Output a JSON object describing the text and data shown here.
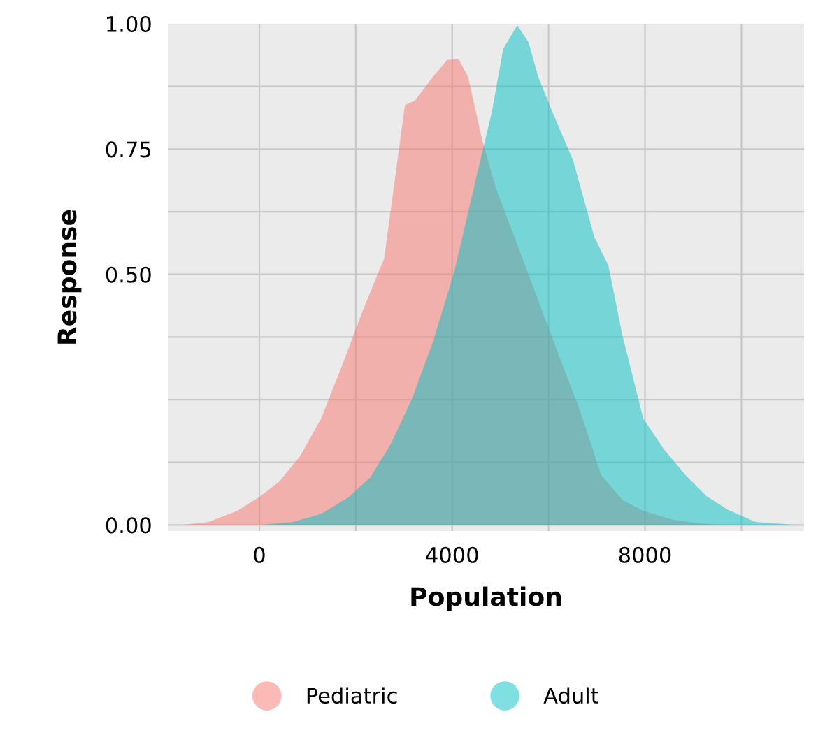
{
  "chart_data": {
    "type": "area",
    "xlabel": "Population",
    "ylabel": "Response",
    "x": [
      -1630,
      -1050,
      -465,
      0,
      407,
      843,
      1280,
      1715,
      2150,
      2590,
      3020,
      3230,
      3600,
      3900,
      4130,
      4330,
      4620,
      4910,
      5350,
      5785,
      6220,
      6660,
      7090,
      7530,
      7965,
      8550,
      9130,
      9710
    ],
    "series": [
      {
        "name": "Pediatric",
        "color": "#F8766D",
        "values": [
          0,
          0.006,
          0.028,
          0.056,
          0.086,
          0.137,
          0.212,
          0.318,
          0.429,
          0.532,
          0.838,
          0.847,
          0.894,
          0.928,
          0.93,
          0.894,
          0.769,
          0.671,
          0.56,
          0.448,
          0.337,
          0.226,
          0.1,
          0.05,
          0.028,
          0.011,
          0.003,
          0
        ]
      },
      {
        "name": "Adult",
        "color": "#00BFC4",
        "x": [
          0,
          700,
          1280,
          1860,
          2300,
          2730,
          3170,
          3600,
          4040,
          4480,
          4825,
          5060,
          5350,
          5580,
          5785,
          6075,
          6510,
          6950,
          7240,
          7530,
          7965,
          8400,
          8840,
          9270,
          9710,
          10290,
          11160
        ],
        "values": [
          0,
          0.006,
          0.022,
          0.056,
          0.095,
          0.162,
          0.253,
          0.365,
          0.504,
          0.685,
          0.825,
          0.95,
          0.997,
          0.964,
          0.894,
          0.825,
          0.727,
          0.574,
          0.518,
          0.379,
          0.212,
          0.15,
          0.1,
          0.058,
          0.031,
          0.006,
          0
        ]
      }
    ],
    "xlim": [
      -1900,
      11300
    ],
    "ylim": [
      -0.012,
      1.0
    ],
    "xticks": [
      0,
      {
        "value": 2000,
        "label": null
      },
      4000,
      {
        "value": 6000,
        "label": null
      },
      8000,
      {
        "value": 10000,
        "label": null
      }
    ],
    "yticks": [
      {
        "value": 0,
        "label": "0.00"
      },
      {
        "value": 0.125,
        "label": null
      },
      {
        "value": 0.25,
        "label": null
      },
      {
        "value": 0.375,
        "label": null
      },
      {
        "value": 0.5,
        "label": "0.50"
      },
      {
        "value": 0.625,
        "label": null
      },
      {
        "value": 0.75,
        "label": "0.75"
      },
      {
        "value": 0.875,
        "label": null
      },
      {
        "value": 1.0,
        "label": "1.00"
      }
    ],
    "grid": true,
    "legend": "bottom"
  }
}
